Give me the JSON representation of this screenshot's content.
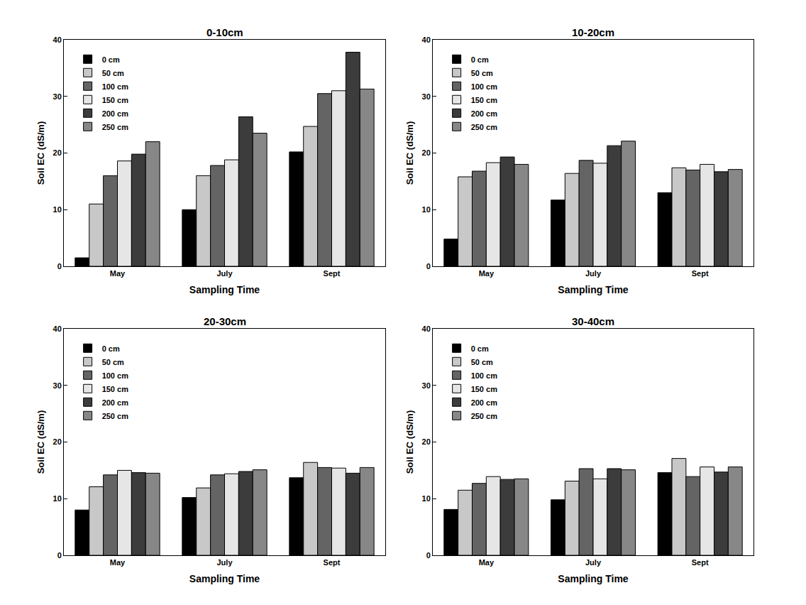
{
  "chart_data": [
    {
      "type": "bar",
      "title": "0-10cm",
      "xlabel": "Sampling Time",
      "ylabel": "Soil EC (dS/m)",
      "categories": [
        "May",
        "July",
        "Sept"
      ],
      "ylim": [
        0,
        40
      ],
      "yticks": [
        0,
        10,
        20,
        30,
        40
      ],
      "legend": "upper left",
      "series": [
        {
          "name": "0 cm",
          "color": "#000000",
          "values": [
            1.5,
            10,
            20.2
          ]
        },
        {
          "name": "50 cm",
          "color": "#c8c8c8",
          "values": [
            11,
            16,
            24.7
          ]
        },
        {
          "name": "100 cm",
          "color": "#646464",
          "values": [
            16,
            17.8,
            30.5
          ]
        },
        {
          "name": "150 cm",
          "color": "#e6e6e6",
          "values": [
            18.6,
            18.8,
            31
          ]
        },
        {
          "name": "200 cm",
          "color": "#3c3c3c",
          "values": [
            19.8,
            26.4,
            37.8
          ]
        },
        {
          "name": "250 cm",
          "color": "#878787",
          "values": [
            22,
            23.5,
            31.3
          ]
        }
      ]
    },
    {
      "type": "bar",
      "title": "10-20cm",
      "xlabel": "Sampling Time",
      "ylabel": "Soil EC (dS/m)",
      "categories": [
        "May",
        "July",
        "Sept"
      ],
      "ylim": [
        0,
        40
      ],
      "yticks": [
        0,
        10,
        20,
        30,
        40
      ],
      "legend": "upper left",
      "series": [
        {
          "name": "0 cm",
          "color": "#000000",
          "values": [
            4.8,
            11.7,
            13
          ]
        },
        {
          "name": "50 cm",
          "color": "#c8c8c8",
          "values": [
            15.8,
            16.4,
            17.4
          ]
        },
        {
          "name": "100 cm",
          "color": "#646464",
          "values": [
            16.8,
            18.7,
            17
          ]
        },
        {
          "name": "150 cm",
          "color": "#e6e6e6",
          "values": [
            18.3,
            18.2,
            18
          ]
        },
        {
          "name": "200 cm",
          "color": "#3c3c3c",
          "values": [
            19.3,
            21.3,
            16.7
          ]
        },
        {
          "name": "250 cm",
          "color": "#878787",
          "values": [
            18,
            22.1,
            17.1
          ]
        }
      ]
    },
    {
      "type": "bar",
      "title": "20-30cm",
      "xlabel": "Sampling Time",
      "ylabel": "Soil EC (dS/m)",
      "categories": [
        "May",
        "July",
        "Sept"
      ],
      "ylim": [
        0,
        40
      ],
      "yticks": [
        0,
        10,
        20,
        30,
        40
      ],
      "legend": "upper left",
      "series": [
        {
          "name": "0 cm",
          "color": "#000000",
          "values": [
            8,
            10.2,
            13.7
          ]
        },
        {
          "name": "50 cm",
          "color": "#c8c8c8",
          "values": [
            12.1,
            11.9,
            16.4
          ]
        },
        {
          "name": "100 cm",
          "color": "#646464",
          "values": [
            14.2,
            14.2,
            15.5
          ]
        },
        {
          "name": "150 cm",
          "color": "#e6e6e6",
          "values": [
            15,
            14.4,
            15.4
          ]
        },
        {
          "name": "200 cm",
          "color": "#3c3c3c",
          "values": [
            14.6,
            14.8,
            14.5
          ]
        },
        {
          "name": "250 cm",
          "color": "#878787",
          "values": [
            14.5,
            15.1,
            15.5
          ]
        }
      ]
    },
    {
      "type": "bar",
      "title": "30-40cm",
      "xlabel": "Sampling Time",
      "ylabel": "Soil EC (dS/m)",
      "categories": [
        "May",
        "July",
        "Sept"
      ],
      "ylim": [
        0,
        40
      ],
      "yticks": [
        0,
        10,
        20,
        30,
        40
      ],
      "legend": "upper left",
      "series": [
        {
          "name": "0 cm",
          "color": "#000000",
          "values": [
            8.1,
            9.8,
            14.6
          ]
        },
        {
          "name": "50 cm",
          "color": "#c8c8c8",
          "values": [
            11.5,
            13.1,
            17.1
          ]
        },
        {
          "name": "100 cm",
          "color": "#646464",
          "values": [
            12.7,
            15.3,
            13.9
          ]
        },
        {
          "name": "150 cm",
          "color": "#e6e6e6",
          "values": [
            13.9,
            13.5,
            15.6
          ]
        },
        {
          "name": "200 cm",
          "color": "#3c3c3c",
          "values": [
            13.4,
            15.3,
            14.7
          ]
        },
        {
          "name": "250 cm",
          "color": "#878787",
          "values": [
            13.5,
            15.1,
            15.6
          ]
        }
      ]
    }
  ]
}
